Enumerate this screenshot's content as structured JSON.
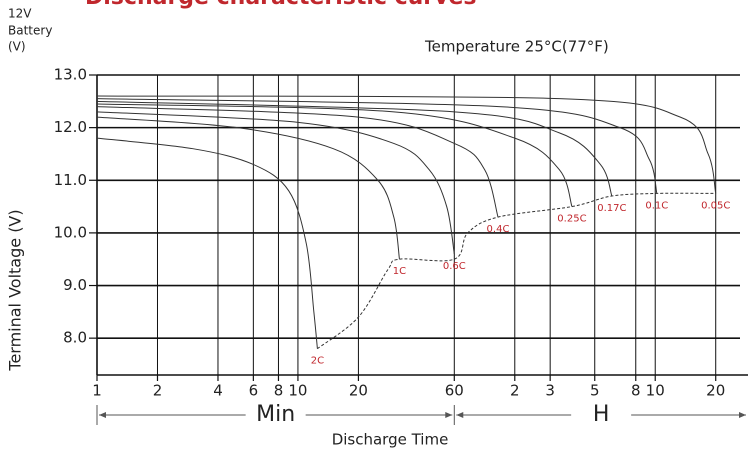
{
  "chart_data": {
    "type": "line",
    "title": "Discharge characteristic curves",
    "unit_note": [
      "12V",
      "Battery",
      "(V)"
    ],
    "temperature": "Temperature 25°C(77°F)",
    "y_label": "Terminal Voltage (V)",
    "x_label": "Discharge Time",
    "range_labels": [
      "Min",
      "H"
    ],
    "xscale": "log",
    "xlim": [
      1,
      1585
    ],
    "ylim": [
      7.3,
      13.0
    ],
    "grid": true,
    "xticks": [
      1,
      2,
      4,
      6,
      8,
      10,
      20,
      60,
      {
        "value": 120,
        "label": "2"
      },
      {
        "value": 180,
        "label": "3"
      },
      {
        "value": 300,
        "label": "5"
      },
      {
        "value": 480,
        "label": "8"
      },
      {
        "value": 600,
        "label": "10"
      },
      {
        "value": 1200,
        "label": "20"
      }
    ],
    "yticks": [
      {
        "value": 8,
        "label": "8.0"
      },
      {
        "value": 9,
        "label": "9.0"
      },
      {
        "value": 10,
        "label": "10.0"
      },
      {
        "value": 11,
        "label": "11.0"
      },
      {
        "value": 12,
        "label": "12.0"
      },
      {
        "value": 13,
        "label": "13.0"
      }
    ],
    "series": [
      {
        "name": "2C",
        "color": "#333333",
        "x": [
          1,
          3,
          6,
          9,
          11,
          12,
          12.5
        ],
        "values": [
          11.8,
          11.6,
          11.3,
          10.8,
          9.8,
          8.5,
          7.8
        ]
      },
      {
        "name": "1C",
        "color": "#333333",
        "x": [
          1,
          5,
          15,
          25,
          30,
          32
        ],
        "values": [
          12.2,
          12.0,
          11.6,
          11.0,
          10.3,
          9.5
        ]
      },
      {
        "name": "0.6C",
        "color": "#333333",
        "x": [
          1,
          10,
          30,
          45,
          55,
          60
        ],
        "values": [
          12.3,
          12.1,
          11.7,
          11.2,
          10.5,
          9.6
        ]
      },
      {
        "name": "0.4C",
        "color": "#333333",
        "x": [
          1,
          20,
          60,
          85,
          99
        ],
        "values": [
          12.4,
          12.2,
          11.7,
          11.2,
          10.3
        ]
      },
      {
        "name": "0.25C",
        "color": "#333333",
        "x": [
          1,
          30,
          120,
          200,
          231
        ],
        "values": [
          12.45,
          12.3,
          11.8,
          11.2,
          10.5
        ]
      },
      {
        "name": "0.17C",
        "color": "#333333",
        "x": [
          1,
          60,
          200,
          320,
          365
        ],
        "values": [
          12.5,
          12.3,
          11.9,
          11.3,
          10.7
        ]
      },
      {
        "name": "0.1C",
        "color": "#333333",
        "x": [
          1,
          100,
          400,
          560,
          611
        ],
        "values": [
          12.55,
          12.4,
          12.0,
          11.4,
          10.75
        ]
      },
      {
        "name": "0.05C",
        "color": "#333333",
        "x": [
          1,
          200,
          800,
          1100,
          1200
        ],
        "values": [
          12.6,
          12.55,
          12.2,
          11.5,
          10.75
        ]
      },
      {
        "color": "#333333",
        "dashed": true,
        "x": [
          12.5,
          20,
          28,
          32,
          60,
          70,
          99,
          231,
          365,
          611,
          1200
        ],
        "values": [
          7.8,
          8.4,
          9.3,
          9.5,
          9.5,
          10.0,
          10.3,
          10.5,
          10.7,
          10.75,
          10.75
        ]
      }
    ],
    "label_color": "#c0272d"
  }
}
